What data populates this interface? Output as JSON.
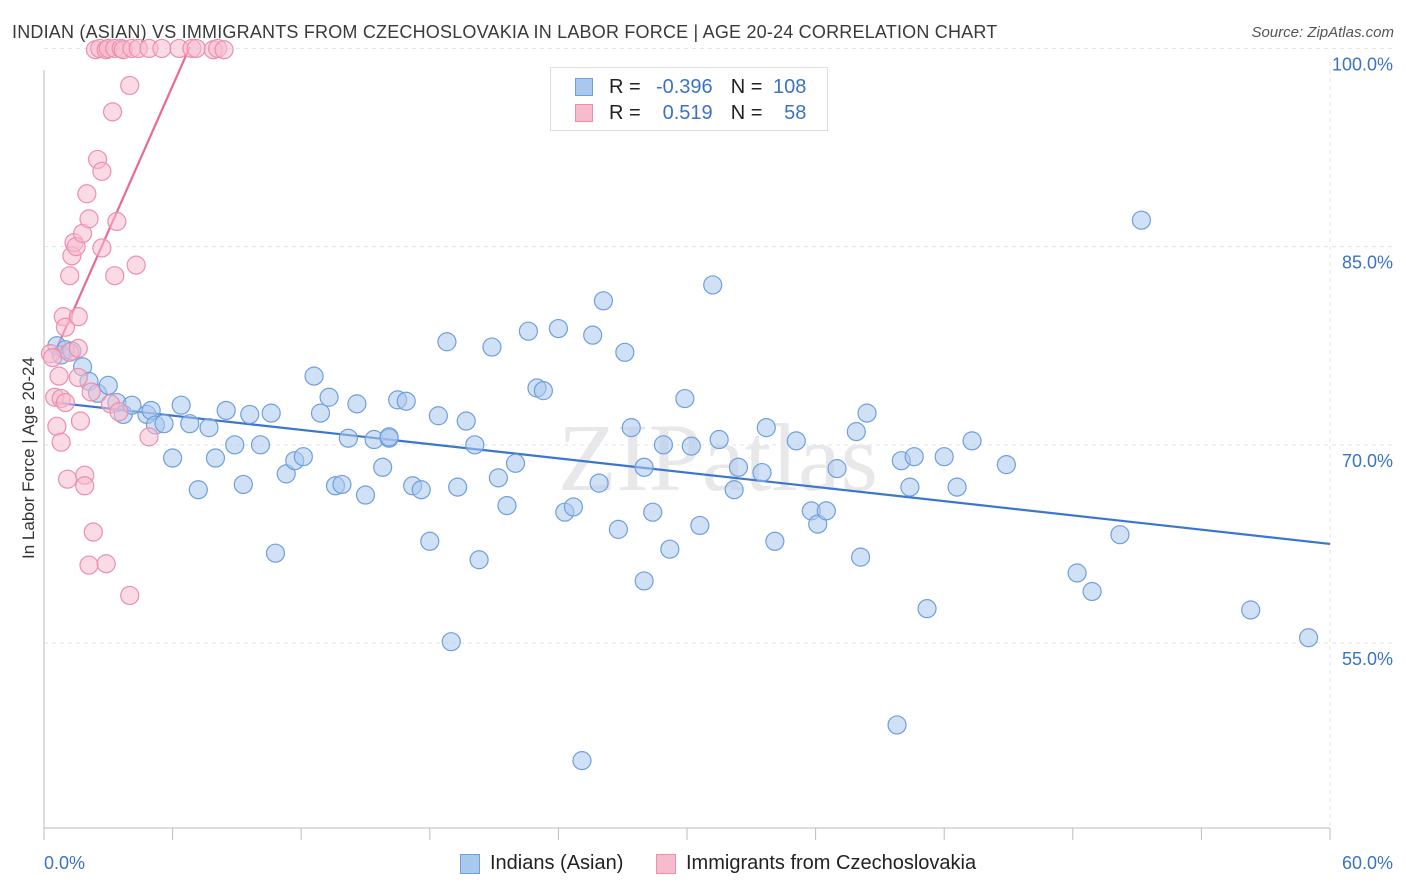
{
  "title": "INDIAN (ASIAN) VS IMMIGRANTS FROM CZECHOSLOVAKIA IN LABOR FORCE | AGE 20-24 CORRELATION CHART",
  "source": "Source: ZipAtlas.com",
  "watermark": "ZIPatlas",
  "legend": {
    "rows": [
      {
        "r_label": "R =",
        "r_value": "-0.396",
        "n_label": "N =",
        "n_value": "108"
      },
      {
        "r_label": "R =",
        "r_value": "0.519",
        "n_label": "N =",
        "n_value": "58"
      }
    ]
  },
  "bottom_legend": {
    "series1": "Indians (Asian)",
    "series2": "Immigrants from Czechoslovakia"
  },
  "colors": {
    "blue_fill": "#a9c8ee",
    "blue_stroke": "#6f9fdc",
    "blue_line": "#3a76cf",
    "pink_fill": "#f6bccd",
    "pink_stroke": "#ec8fad",
    "pink_line": "#e8699a",
    "axis_label": "#3a73c5"
  },
  "chart_data": {
    "type": "scatter",
    "title": "INDIAN (ASIAN) VS IMMIGRANTS FROM CZECHOSLOVAKIA IN LABOR FORCE | AGE 20-24 CORRELATION CHART",
    "xlabel": "",
    "ylabel": "In Labor Force | Age 20-24",
    "xlim": [
      0,
      60
    ],
    "ylim": [
      41,
      102
    ],
    "x_tick_labels": [
      "0.0%",
      "60.0%"
    ],
    "y_tick_labels": [
      "100.0%",
      "85.0%",
      "70.0%",
      "55.0%"
    ],
    "y_ticks": [
      100,
      85,
      70,
      55
    ],
    "grid": true,
    "series": [
      {
        "name": "Indians (Asian)",
        "trend": {
          "x": [
            0.5,
            60
          ],
          "y": [
            73.2,
            62.5
          ]
        },
        "points": [
          [
            0.6,
            77.5
          ],
          [
            0.8,
            76.8
          ],
          [
            1.0,
            77.2
          ],
          [
            1.3,
            77.1
          ],
          [
            1.8,
            75.9
          ],
          [
            2.1,
            74.8
          ],
          [
            2.5,
            73.9
          ],
          [
            3.0,
            74.5
          ],
          [
            3.4,
            73.2
          ],
          [
            3.7,
            72.3
          ],
          [
            4.1,
            73.0
          ],
          [
            4.8,
            72.3
          ],
          [
            5.0,
            72.6
          ],
          [
            5.2,
            71.5
          ],
          [
            5.6,
            71.6
          ],
          [
            6.0,
            69.0
          ],
          [
            6.4,
            73.0
          ],
          [
            6.8,
            71.6
          ],
          [
            7.2,
            66.6
          ],
          [
            7.7,
            71.3
          ],
          [
            8.0,
            69.0
          ],
          [
            8.5,
            72.6
          ],
          [
            8.9,
            70.0
          ],
          [
            9.3,
            67.0
          ],
          [
            9.6,
            72.3
          ],
          [
            10.1,
            70.0
          ],
          [
            10.6,
            72.4
          ],
          [
            10.8,
            61.8
          ],
          [
            11.3,
            67.8
          ],
          [
            11.7,
            68.8
          ],
          [
            12.1,
            69.1
          ],
          [
            12.6,
            75.2
          ],
          [
            12.9,
            72.4
          ],
          [
            13.3,
            73.6
          ],
          [
            13.6,
            66.9
          ],
          [
            13.9,
            67.0
          ],
          [
            14.2,
            70.5
          ],
          [
            14.6,
            73.1
          ],
          [
            15.0,
            66.2
          ],
          [
            15.4,
            70.4
          ],
          [
            15.8,
            68.3
          ],
          [
            16.1,
            70.5
          ],
          [
            16.5,
            73.4
          ],
          [
            16.9,
            73.3
          ],
          [
            17.2,
            66.9
          ],
          [
            17.6,
            66.6
          ],
          [
            18.0,
            62.7
          ],
          [
            18.4,
            72.2
          ],
          [
            18.8,
            77.8
          ],
          [
            19.0,
            55.1
          ],
          [
            19.3,
            66.8
          ],
          [
            19.7,
            71.8
          ],
          [
            20.1,
            70.0
          ],
          [
            20.3,
            61.3
          ],
          [
            20.9,
            77.4
          ],
          [
            21.2,
            67.5
          ],
          [
            21.6,
            65.4
          ],
          [
            22.0,
            68.6
          ],
          [
            22.6,
            78.6
          ],
          [
            23.0,
            74.3
          ],
          [
            23.3,
            74.1
          ],
          [
            24.0,
            78.8
          ],
          [
            24.3,
            64.9
          ],
          [
            24.7,
            65.3
          ],
          [
            25.1,
            46.1
          ],
          [
            25.6,
            78.3
          ],
          [
            25.9,
            67.1
          ],
          [
            26.1,
            80.9
          ],
          [
            26.8,
            63.6
          ],
          [
            27.1,
            77.0
          ],
          [
            27.4,
            71.3
          ],
          [
            28.0,
            68.3
          ],
          [
            28.0,
            59.7
          ],
          [
            28.4,
            64.9
          ],
          [
            28.9,
            70.0
          ],
          [
            29.2,
            62.1
          ],
          [
            29.9,
            73.5
          ],
          [
            30.2,
            69.9
          ],
          [
            30.6,
            63.9
          ],
          [
            31.2,
            82.1
          ],
          [
            31.5,
            70.4
          ],
          [
            32.2,
            66.6
          ],
          [
            32.4,
            68.3
          ],
          [
            33.5,
            67.9
          ],
          [
            33.7,
            71.3
          ],
          [
            34.1,
            62.7
          ],
          [
            35.1,
            70.3
          ],
          [
            35.8,
            65.0
          ],
          [
            36.1,
            64.0
          ],
          [
            36.5,
            65.0
          ],
          [
            37.0,
            68.2
          ],
          [
            37.9,
            71.0
          ],
          [
            38.1,
            61.5
          ],
          [
            38.4,
            72.4
          ],
          [
            40.0,
            68.8
          ],
          [
            40.4,
            66.8
          ],
          [
            40.6,
            69.1
          ],
          [
            41.2,
            57.6
          ],
          [
            42.0,
            69.1
          ],
          [
            42.6,
            66.8
          ],
          [
            43.3,
            70.3
          ],
          [
            44.9,
            68.5
          ],
          [
            48.2,
            60.3
          ],
          [
            48.9,
            58.9
          ],
          [
            50.2,
            63.2
          ],
          [
            51.2,
            87.0
          ],
          [
            56.3,
            57.5
          ],
          [
            59.0,
            55.4
          ],
          [
            39.8,
            48.8
          ],
          [
            16.1,
            70.6
          ]
        ]
      },
      {
        "name": "Immigrants from Czechoslovakia",
        "trend": {
          "x": [
            0.4,
            6.8
          ],
          "y": [
            76.6,
            100.1
          ]
        },
        "points": [
          [
            0.3,
            76.9
          ],
          [
            0.4,
            76.6
          ],
          [
            0.5,
            73.6
          ],
          [
            0.6,
            71.4
          ],
          [
            0.7,
            75.2
          ],
          [
            0.8,
            73.5
          ],
          [
            0.8,
            70.2
          ],
          [
            0.9,
            79.7
          ],
          [
            1.0,
            73.2
          ],
          [
            1.0,
            78.9
          ],
          [
            1.1,
            67.4
          ],
          [
            1.2,
            77.0
          ],
          [
            1.2,
            82.8
          ],
          [
            1.3,
            84.3
          ],
          [
            1.4,
            85.3
          ],
          [
            1.5,
            85.0
          ],
          [
            1.6,
            79.7
          ],
          [
            1.6,
            75.1
          ],
          [
            1.6,
            77.3
          ],
          [
            1.7,
            71.8
          ],
          [
            1.8,
            86.0
          ],
          [
            1.9,
            67.7
          ],
          [
            1.9,
            66.9
          ],
          [
            2.0,
            89.0
          ],
          [
            2.1,
            60.9
          ],
          [
            2.1,
            87.1
          ],
          [
            2.2,
            74.0
          ],
          [
            2.3,
            63.4
          ],
          [
            2.4,
            99.9
          ],
          [
            2.5,
            91.6
          ],
          [
            2.6,
            100.0
          ],
          [
            2.7,
            90.7
          ],
          [
            2.7,
            84.9
          ],
          [
            2.9,
            99.9
          ],
          [
            2.9,
            61.0
          ],
          [
            3.0,
            100.0
          ],
          [
            3.1,
            73.1
          ],
          [
            3.2,
            95.2
          ],
          [
            3.3,
            100.0
          ],
          [
            3.3,
            82.8
          ],
          [
            3.4,
            86.9
          ],
          [
            3.5,
            72.5
          ],
          [
            3.6,
            100.0
          ],
          [
            3.7,
            99.9
          ],
          [
            4.0,
            97.2
          ],
          [
            4.0,
            58.6
          ],
          [
            4.1,
            100.0
          ],
          [
            4.3,
            83.6
          ],
          [
            4.4,
            100.0
          ],
          [
            4.9,
            100.0
          ],
          [
            5.5,
            100.0
          ],
          [
            6.3,
            100.0
          ],
          [
            6.9,
            100.0
          ],
          [
            7.1,
            100.0
          ],
          [
            7.9,
            99.9
          ],
          [
            8.1,
            100.0
          ],
          [
            8.4,
            99.9
          ],
          [
            4.9,
            70.6
          ]
        ]
      }
    ]
  }
}
